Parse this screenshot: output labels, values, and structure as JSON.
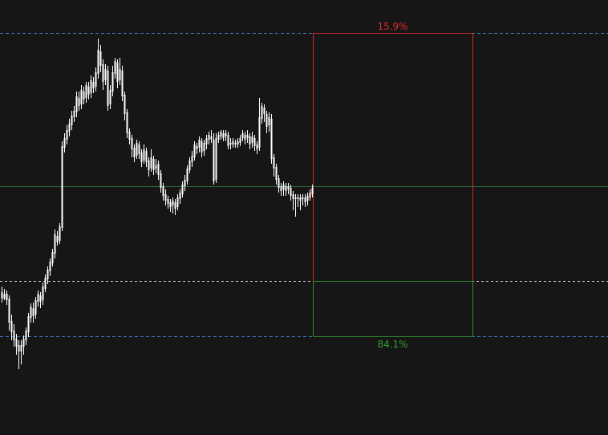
{
  "chart_data": {
    "type": "candlestick",
    "title": "",
    "xlabel": "",
    "ylabel": "",
    "ylim": [
      0,
      542
    ],
    "grid": false,
    "colors": {
      "background": "#161616",
      "candle": "#ffffff",
      "target_box": "#d42a2a",
      "stop_box": "#2e8b2e",
      "level_blue": "#3d7fd6",
      "level_white": "#d8d8d8",
      "level_green": "#2f6b3c",
      "up_label": "#e02828",
      "down_label": "#2e9e2e"
    },
    "levels": {
      "upper_blue": 501,
      "entry_green": 310,
      "white_dashed": 192,
      "lower_blue": 123
    },
    "probability_box": {
      "up_label": "15.9%",
      "down_label": "84.1%",
      "x_start": 390,
      "x_end": 589
    },
    "candles": [
      [
        2,
        170,
        178,
        165,
        185
      ],
      [
        5,
        176,
        170,
        168,
        182
      ],
      [
        8,
        168,
        176,
        162,
        180
      ],
      [
        11,
        170,
        140,
        130,
        174
      ],
      [
        14,
        142,
        128,
        118,
        150
      ],
      [
        17,
        130,
        118,
        110,
        138
      ],
      [
        20,
        120,
        110,
        100,
        126
      ],
      [
        23,
        112,
        104,
        82,
        118
      ],
      [
        26,
        104,
        112,
        88,
        118
      ],
      [
        29,
        110,
        120,
        100,
        124
      ],
      [
        32,
        118,
        130,
        112,
        134
      ],
      [
        35,
        128,
        148,
        122,
        152
      ],
      [
        38,
        146,
        160,
        140,
        164
      ],
      [
        41,
        158,
        148,
        140,
        165
      ],
      [
        44,
        150,
        168,
        145,
        172
      ],
      [
        47,
        166,
        176,
        160,
        180
      ],
      [
        50,
        174,
        166,
        158,
        178
      ],
      [
        53,
        168,
        185,
        162,
        190
      ],
      [
        56,
        182,
        196,
        178,
        200
      ],
      [
        59,
        194,
        206,
        188,
        210
      ],
      [
        62,
        204,
        216,
        198,
        220
      ],
      [
        65,
        214,
        228,
        210,
        232
      ],
      [
        68,
        226,
        250,
        220,
        256
      ],
      [
        71,
        248,
        240,
        236,
        254
      ],
      [
        74,
        242,
        260,
        238,
        264
      ],
      [
        77,
        258,
        360,
        254,
        366
      ],
      [
        80,
        358,
        370,
        352,
        376
      ],
      [
        83,
        368,
        380,
        362,
        386
      ],
      [
        86,
        378,
        388,
        372,
        394
      ],
      [
        89,
        386,
        398,
        380,
        404
      ],
      [
        92,
        396,
        404,
        390,
        410
      ],
      [
        95,
        402,
        422,
        396,
        428
      ],
      [
        98,
        420,
        410,
        404,
        428
      ],
      [
        101,
        412,
        430,
        406,
        436
      ],
      [
        104,
        428,
        418,
        412,
        434
      ],
      [
        107,
        420,
        436,
        414,
        440
      ],
      [
        110,
        434,
        424,
        418,
        440
      ],
      [
        113,
        426,
        442,
        420,
        448
      ],
      [
        116,
        440,
        432,
        426,
        446
      ],
      [
        119,
        434,
        452,
        428,
        458
      ],
      [
        122,
        450,
        480,
        444,
        494
      ],
      [
        125,
        478,
        460,
        452,
        486
      ],
      [
        128,
        462,
        440,
        430,
        468
      ],
      [
        131,
        442,
        456,
        436,
        462
      ],
      [
        134,
        454,
        410,
        404,
        460
      ],
      [
        137,
        412,
        430,
        406,
        436
      ],
      [
        140,
        428,
        452,
        422,
        460
      ],
      [
        143,
        450,
        466,
        444,
        470
      ],
      [
        146,
        464,
        440,
        432,
        468
      ],
      [
        149,
        442,
        456,
        436,
        470
      ],
      [
        152,
        454,
        422,
        416,
        460
      ],
      [
        155,
        424,
        400,
        392,
        428
      ],
      [
        158,
        402,
        376,
        370,
        406
      ],
      [
        161,
        378,
        368,
        362,
        382
      ],
      [
        164,
        370,
        356,
        346,
        374
      ],
      [
        167,
        358,
        346,
        340,
        362
      ],
      [
        170,
        348,
        364,
        344,
        368
      ],
      [
        173,
        362,
        350,
        344,
        366
      ],
      [
        176,
        352,
        340,
        334,
        356
      ],
      [
        179,
        342,
        356,
        338,
        362
      ],
      [
        182,
        354,
        340,
        334,
        358
      ],
      [
        185,
        342,
        330,
        322,
        346
      ],
      [
        188,
        332,
        346,
        328,
        356
      ],
      [
        191,
        344,
        330,
        324,
        348
      ],
      [
        194,
        332,
        336,
        326,
        344
      ],
      [
        197,
        338,
        324,
        318,
        342
      ],
      [
        200,
        326,
        308,
        302,
        330
      ],
      [
        203,
        310,
        298,
        292,
        314
      ],
      [
        206,
        300,
        292,
        286,
        306
      ],
      [
        209,
        294,
        288,
        282,
        298
      ],
      [
        212,
        290,
        284,
        278,
        294
      ],
      [
        215,
        286,
        292,
        276,
        296
      ],
      [
        218,
        290,
        282,
        274,
        294
      ],
      [
        221,
        284,
        296,
        280,
        300
      ],
      [
        224,
        294,
        302,
        288,
        306
      ],
      [
        227,
        300,
        312,
        296,
        316
      ],
      [
        230,
        310,
        318,
        304,
        324
      ],
      [
        233,
        316,
        332,
        312,
        336
      ],
      [
        236,
        330,
        342,
        326,
        346
      ],
      [
        239,
        340,
        348,
        334,
        354
      ],
      [
        242,
        346,
        362,
        342,
        366
      ],
      [
        245,
        360,
        356,
        350,
        364
      ],
      [
        248,
        358,
        368,
        352,
        372
      ],
      [
        251,
        366,
        352,
        346,
        370
      ],
      [
        254,
        354,
        364,
        348,
        368
      ],
      [
        257,
        362,
        370,
        356,
        374
      ],
      [
        260,
        368,
        374,
        362,
        378
      ],
      [
        263,
        372,
        368,
        364,
        380
      ],
      [
        266,
        368,
        316,
        312,
        376
      ],
      [
        269,
        318,
        370,
        314,
        376
      ],
      [
        272,
        368,
        374,
        364,
        378
      ],
      [
        275,
        372,
        378,
        368,
        380
      ],
      [
        278,
        376,
        370,
        366,
        380
      ],
      [
        281,
        372,
        376,
        366,
        380
      ],
      [
        284,
        374,
        360,
        356,
        378
      ],
      [
        287,
        362,
        364,
        356,
        370
      ],
      [
        290,
        362,
        366,
        358,
        370
      ],
      [
        293,
        364,
        362,
        358,
        368
      ],
      [
        296,
        362,
        366,
        358,
        370
      ],
      [
        299,
        364,
        370,
        360,
        374
      ],
      [
        302,
        370,
        376,
        366,
        380
      ],
      [
        305,
        374,
        368,
        362,
        378
      ],
      [
        308,
        370,
        374,
        364,
        380
      ],
      [
        311,
        372,
        362,
        356,
        376
      ],
      [
        314,
        364,
        372,
        358,
        378
      ],
      [
        317,
        370,
        360,
        354,
        374
      ],
      [
        320,
        362,
        356,
        350,
        366
      ],
      [
        323,
        358,
        396,
        354,
        420
      ],
      [
        326,
        394,
        410,
        388,
        414
      ],
      [
        329,
        408,
        400,
        390,
        412
      ],
      [
        332,
        400,
        384,
        376,
        404
      ],
      [
        335,
        386,
        396,
        378,
        402
      ],
      [
        338,
        394,
        344,
        338,
        400
      ],
      [
        341,
        346,
        332,
        322,
        350
      ],
      [
        344,
        334,
        318,
        312,
        338
      ],
      [
        347,
        320,
        308,
        302,
        324
      ],
      [
        350,
        310,
        304,
        298,
        314
      ],
      [
        353,
        306,
        312,
        298,
        316
      ],
      [
        356,
        310,
        304,
        298,
        314
      ],
      [
        359,
        306,
        310,
        300,
        314
      ],
      [
        362,
        308,
        298,
        292,
        312
      ],
      [
        365,
        300,
        294,
        280,
        304
      ],
      [
        368,
        296,
        294,
        272,
        300
      ],
      [
        371,
        294,
        296,
        284,
        300
      ],
      [
        374,
        296,
        292,
        280,
        300
      ],
      [
        377,
        294,
        296,
        286,
        300
      ],
      [
        380,
        296,
        290,
        284,
        300
      ],
      [
        383,
        292,
        298,
        286,
        302
      ],
      [
        386,
        296,
        302,
        292,
        306
      ],
      [
        389,
        300,
        308,
        296,
        312
      ]
    ]
  }
}
